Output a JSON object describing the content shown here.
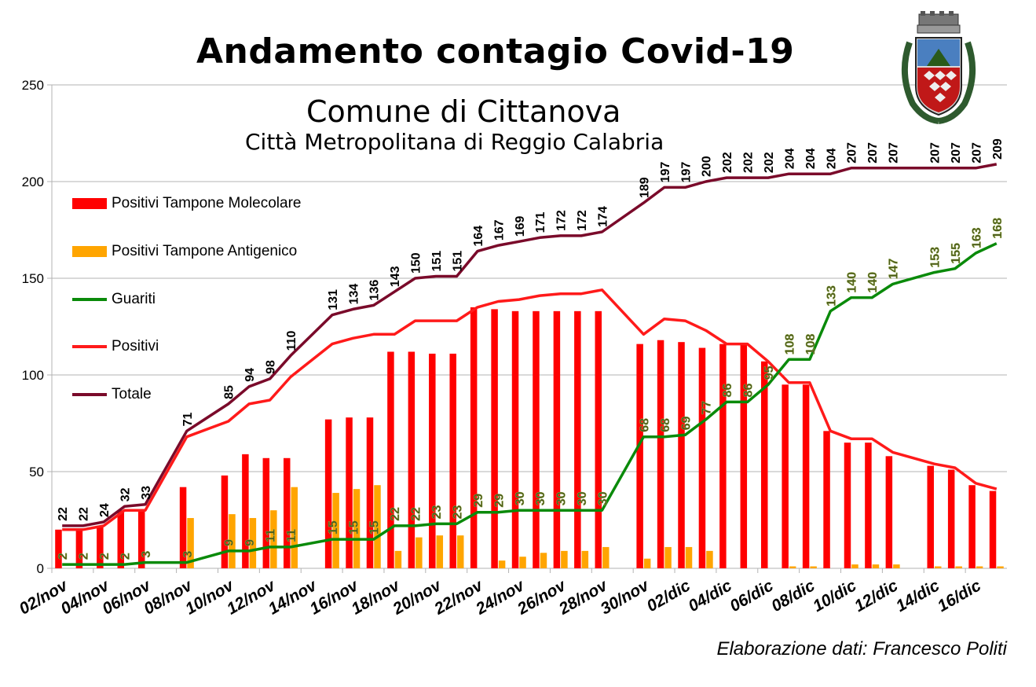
{
  "header": {
    "title": "Andamento contagio Covid-19",
    "subtitle": "Comune di Cittanova",
    "subsubtitle": "Città Metropolitana di Reggio Calabria"
  },
  "footer": {
    "credit": "Elaborazione dati: Francesco Politi"
  },
  "colors": {
    "molecolare": "#ff0000",
    "antigenico": "#ffa500",
    "guariti": "#0a8a0a",
    "positivi": "#ff1a1a",
    "totale": "#7a0a2a",
    "guariti_label": "#4a5a1a"
  },
  "legend": [
    {
      "label": "Positivi Tampone Molecolare",
      "kind": "bar",
      "color": "#ff0000"
    },
    {
      "label": "Positivi Tampone Antigenico",
      "kind": "bar",
      "color": "#ffa500"
    },
    {
      "label": "Guariti",
      "kind": "line",
      "color": "#0a8a0a"
    },
    {
      "label": "Positivi",
      "kind": "line",
      "color": "#ff1a1a"
    },
    {
      "label": "Totale",
      "kind": "line",
      "color": "#7a0a2a"
    }
  ],
  "chart_data": {
    "type": "bar",
    "ylim": [
      0,
      250
    ],
    "yticks": [
      0,
      50,
      100,
      150,
      200,
      250
    ],
    "x_tick_labels": [
      "02/nov",
      "04/nov",
      "06/nov",
      "08/nov",
      "10/nov",
      "12/nov",
      "14/nov",
      "16/nov",
      "18/nov",
      "20/nov",
      "22/nov",
      "24/nov",
      "26/nov",
      "28/nov",
      "30/nov",
      "02/dic",
      "04/dic",
      "06/dic",
      "08/dic",
      "10/dic",
      "12/dic",
      "14/dic",
      "16/dic"
    ],
    "points": [
      {
        "date": "02/nov",
        "molecolare": 20,
        "antigenico": 0,
        "guariti": 2,
        "positivi": 20,
        "totale": 22
      },
      {
        "date": "03/nov",
        "molecolare": 20,
        "antigenico": 0,
        "guariti": 2,
        "positivi": 20,
        "totale": 22
      },
      {
        "date": "04/nov",
        "molecolare": 22,
        "antigenico": 0,
        "guariti": 2,
        "positivi": 22,
        "totale": 24
      },
      {
        "date": "05/nov",
        "molecolare": 30,
        "antigenico": 0,
        "guariti": 2,
        "positivi": 30,
        "totale": 32
      },
      {
        "date": "06/nov",
        "molecolare": 30,
        "antigenico": 0,
        "guariti": 3,
        "positivi": 30,
        "totale": 33
      },
      {
        "date": "08/nov",
        "molecolare": 42,
        "antigenico": 26,
        "guariti": 3,
        "positivi": 68,
        "totale": 71
      },
      {
        "date": "10/nov",
        "molecolare": 48,
        "antigenico": 28,
        "guariti": 9,
        "positivi": 76,
        "totale": 85
      },
      {
        "date": "11/nov",
        "molecolare": 59,
        "antigenico": 26,
        "guariti": 9,
        "positivi": 85,
        "totale": 94
      },
      {
        "date": "12/nov",
        "molecolare": 57,
        "antigenico": 30,
        "guariti": 11,
        "positivi": 87,
        "totale": 98
      },
      {
        "date": "13/nov",
        "molecolare": 57,
        "antigenico": 42,
        "guariti": 11,
        "positivi": 99,
        "totale": 110
      },
      {
        "date": "15/nov",
        "molecolare": 77,
        "antigenico": 39,
        "guariti": 15,
        "positivi": 116,
        "totale": 131
      },
      {
        "date": "16/nov",
        "molecolare": 78,
        "antigenico": 41,
        "guariti": 15,
        "positivi": 119,
        "totale": 134
      },
      {
        "date": "17/nov",
        "molecolare": 78,
        "antigenico": 43,
        "guariti": 15,
        "positivi": 121,
        "totale": 136
      },
      {
        "date": "18/nov",
        "molecolare": 112,
        "antigenico": 9,
        "guariti": 22,
        "positivi": 121,
        "totale": 143
      },
      {
        "date": "19/nov",
        "molecolare": 112,
        "antigenico": 16,
        "guariti": 22,
        "positivi": 128,
        "totale": 150
      },
      {
        "date": "20/nov",
        "molecolare": 111,
        "antigenico": 17,
        "guariti": 23,
        "positivi": 128,
        "totale": 151
      },
      {
        "date": "21/nov",
        "molecolare": 111,
        "antigenico": 17,
        "guariti": 23,
        "positivi": 128,
        "totale": 151
      },
      {
        "date": "22/nov",
        "molecolare": 135,
        "antigenico": 0,
        "guariti": 29,
        "positivi": 135,
        "totale": 164
      },
      {
        "date": "23/nov",
        "molecolare": 134,
        "antigenico": 4,
        "guariti": 29,
        "positivi": 138,
        "totale": 167
      },
      {
        "date": "24/nov",
        "molecolare": 133,
        "antigenico": 6,
        "guariti": 30,
        "positivi": 139,
        "totale": 169
      },
      {
        "date": "25/nov",
        "molecolare": 133,
        "antigenico": 8,
        "guariti": 30,
        "positivi": 141,
        "totale": 171
      },
      {
        "date": "26/nov",
        "molecolare": 133,
        "antigenico": 9,
        "guariti": 30,
        "positivi": 142,
        "totale": 172
      },
      {
        "date": "27/nov",
        "molecolare": 133,
        "antigenico": 9,
        "guariti": 30,
        "positivi": 142,
        "totale": 172
      },
      {
        "date": "28/nov",
        "molecolare": 133,
        "antigenico": 11,
        "guariti": 30,
        "positivi": 144,
        "totale": 174
      },
      {
        "date": "30/nov",
        "molecolare": 116,
        "antigenico": 5,
        "guariti": 68,
        "positivi": 121,
        "totale": 189
      },
      {
        "date": "01/dic",
        "molecolare": 118,
        "antigenico": 11,
        "guariti": 68,
        "positivi": 129,
        "totale": 197
      },
      {
        "date": "02/dic",
        "molecolare": 117,
        "antigenico": 11,
        "guariti": 69,
        "positivi": 128,
        "totale": 197
      },
      {
        "date": "03/dic",
        "molecolare": 114,
        "antigenico": 9,
        "guariti": 77,
        "positivi": 123,
        "totale": 200
      },
      {
        "date": "04/dic",
        "molecolare": 116,
        "antigenico": 0,
        "guariti": 86,
        "positivi": 116,
        "totale": 202
      },
      {
        "date": "05/dic",
        "molecolare": 116,
        "antigenico": 0,
        "guariti": 86,
        "positivi": 116,
        "totale": 202
      },
      {
        "date": "06/dic",
        "molecolare": 107,
        "antigenico": 0,
        "guariti": 95,
        "positivi": 107,
        "totale": 202
      },
      {
        "date": "07/dic",
        "molecolare": 95,
        "antigenico": 1,
        "guariti": 108,
        "positivi": 96,
        "totale": 204
      },
      {
        "date": "08/dic",
        "molecolare": 95,
        "antigenico": 1,
        "guariti": 108,
        "positivi": 96,
        "totale": 204
      },
      {
        "date": "09/dic",
        "molecolare": 71,
        "antigenico": 0,
        "guariti": 133,
        "positivi": 71,
        "totale": 204
      },
      {
        "date": "10/dic",
        "molecolare": 65,
        "antigenico": 2,
        "guariti": 140,
        "positivi": 67,
        "totale": 207
      },
      {
        "date": "11/dic",
        "molecolare": 65,
        "antigenico": 2,
        "guariti": 140,
        "positivi": 67,
        "totale": 207
      },
      {
        "date": "12/dic",
        "molecolare": 58,
        "antigenico": 2,
        "guariti": 147,
        "positivi": 60,
        "totale": 207
      },
      {
        "date": "14/dic",
        "molecolare": 53,
        "antigenico": 1,
        "guariti": 153,
        "positivi": 54,
        "totale": 207
      },
      {
        "date": "15/dic",
        "molecolare": 51,
        "antigenico": 1,
        "guariti": 155,
        "positivi": 52,
        "totale": 207
      },
      {
        "date": "16/dic",
        "molecolare": 43,
        "antigenico": 1,
        "guariti": 163,
        "positivi": 44,
        "totale": 207
      },
      {
        "date": "17/dic",
        "molecolare": 40,
        "antigenico": 1,
        "guariti": 168,
        "positivi": 41,
        "totale": 209
      }
    ]
  }
}
